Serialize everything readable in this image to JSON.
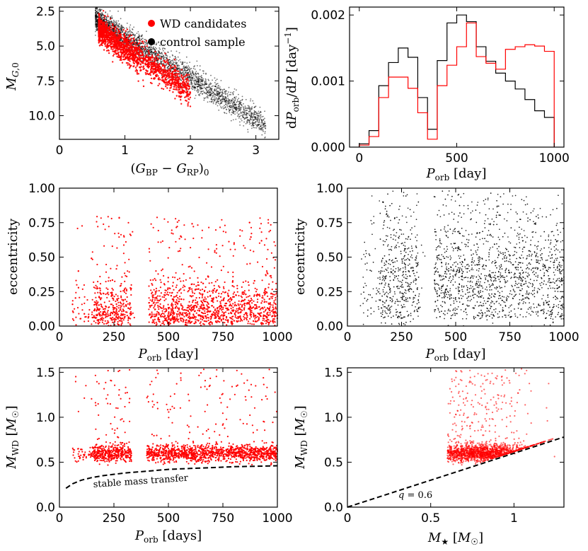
{
  "colors": {
    "wd": "#ff0000",
    "control": "#000000",
    "guide": "#000000"
  },
  "chart_data": [
    {
      "id": "cmd",
      "type": "scatter",
      "xlabel": "(G_BP − G_RP)_0",
      "ylabel": "M_G,0",
      "xlim": [
        0,
        3.35
      ],
      "ylim": [
        11.7,
        2.2
      ],
      "y_inverted": true,
      "xticks": [
        0,
        1,
        2,
        3
      ],
      "yticks": [
        2.5,
        5.0,
        7.5,
        10.0
      ],
      "legend": {
        "placement": "top-right",
        "entries": [
          "WD candidates",
          "control sample"
        ]
      },
      "series": [
        {
          "name": "control sample",
          "color": "#000000",
          "trend": {
            "x_from": 0.5,
            "x_to": 3.2,
            "y_at_x_from": 3.0,
            "slope": 3.0,
            "scatter": 0.7
          }
        },
        {
          "name": "WD candidates",
          "color": "#ff0000",
          "trend": {
            "x_from": 0.6,
            "x_to": 1.9,
            "y_at_x_from": 3.6,
            "slope": 3.3,
            "scatter": 0.9
          }
        }
      ]
    },
    {
      "id": "period_hist",
      "type": "histogram",
      "xlabel": "P_orb [day]",
      "ylabel": "dP_orb/dP [day^-1]",
      "xlim": [
        -50,
        1050
      ],
      "ylim": [
        0,
        0.00212
      ],
      "xticks": [
        0,
        500,
        1000
      ],
      "ytick_labels": [
        "0.000",
        "0.001",
        "0.002"
      ],
      "ytick_values": [
        0,
        0.001,
        0.002
      ],
      "bin_edges": [
        0,
        50,
        100,
        150,
        200,
        250,
        300,
        350,
        400,
        450,
        500,
        550,
        600,
        650,
        700,
        750,
        800,
        850,
        900,
        950,
        1000
      ],
      "series": [
        {
          "name": "control sample",
          "color": "#000000",
          "values": [
            5e-05,
            0.00025,
            0.00093,
            0.00128,
            0.0015,
            0.00136,
            0.00075,
            0.00027,
            0.00131,
            0.00188,
            0.002,
            0.0019,
            0.00152,
            0.0013,
            0.00112,
            0.001,
            0.00088,
            0.00072,
            0.00055,
            0.00045
          ]
        },
        {
          "name": "WD candidates",
          "color": "#ff0000",
          "values": [
            3e-05,
            0.00016,
            0.00075,
            0.00106,
            0.00106,
            0.00089,
            0.00052,
            0.00012,
            0.00093,
            0.00124,
            0.00152,
            0.00188,
            0.00137,
            0.00127,
            0.00118,
            0.00148,
            0.00152,
            0.00155,
            0.00153,
            0.00145
          ]
        }
      ]
    },
    {
      "id": "ecc_wd",
      "type": "scatter",
      "xlabel": "P_orb [day]",
      "ylabel": "eccentricity",
      "xlim": [
        0,
        1000
      ],
      "ylim": [
        0,
        1.0
      ],
      "xticks": [
        0,
        250,
        500,
        750,
        1000
      ],
      "yticks": [
        0.0,
        0.25,
        0.5,
        0.75,
        1.0
      ],
      "series": [
        {
          "name": "WD candidates",
          "color": "#ff0000",
          "count": 1700,
          "density": "clumps at 150-330 and 420-1000 days, gap near 350-400 days, e concentrated 0-0.3"
        }
      ]
    },
    {
      "id": "ecc_control",
      "type": "scatter",
      "xlabel": "P_orb [day]",
      "ylabel": "eccentricity",
      "xlim": [
        0,
        1000
      ],
      "ylim": [
        0,
        1.0
      ],
      "xticks": [
        0,
        250,
        500,
        750,
        1000
      ],
      "yticks": [
        0.0,
        0.25,
        0.5,
        0.75,
        1.0
      ],
      "series": [
        {
          "name": "control sample",
          "color": "#000000",
          "count": 6500,
          "density": "dense at 150-330 and 400-1000 days, gap near 360-400 days"
        }
      ]
    },
    {
      "id": "mwd_period",
      "type": "scatter",
      "xlabel": "P_orb [days]",
      "ylabel": "M_WD [M_☉]",
      "xlim": [
        0,
        1000
      ],
      "ylim": [
        0,
        1.55
      ],
      "xticks": [
        0,
        250,
        500,
        750,
        1000
      ],
      "yticks": [
        0.0,
        0.5,
        1.0,
        1.5
      ],
      "annotations": [
        {
          "text": "stable mass transfer"
        }
      ],
      "curve": {
        "style": "dashed",
        "x": [
          30,
          60,
          100,
          150,
          200,
          300,
          400,
          500,
          600,
          700,
          800,
          900,
          1000
        ],
        "y": [
          0.21,
          0.26,
          0.3,
          0.33,
          0.35,
          0.38,
          0.4,
          0.42,
          0.43,
          0.44,
          0.45,
          0.455,
          0.46
        ]
      },
      "series": [
        {
          "name": "WD candidates",
          "color": "#ff0000",
          "count": 1800,
          "density": "band at M_WD ~0.6, clumps 150-320 and 400-1000 days"
        }
      ]
    },
    {
      "id": "mwd_mstar",
      "type": "scatter",
      "xlabel": "M_★ [M_☉]",
      "ylabel": "M_WD [M_☉]",
      "xlim": [
        0,
        1.3
      ],
      "ylim": [
        0,
        1.55
      ],
      "xticks": [
        0.0,
        0.5,
        1.0
      ],
      "yticks": [
        0.0,
        0.5,
        1.0,
        1.5
      ],
      "annotations": [
        {
          "text": "q = 0.6"
        }
      ],
      "curve": {
        "style": "dashed",
        "x": [
          0,
          1.3
        ],
        "y": [
          0,
          0.78
        ]
      },
      "series": [
        {
          "name": "WD candidates",
          "color": "#ff0000",
          "count": 1800,
          "density": "cluster M_★ 0.6-1.1, M_WD 0.5-0.75 just above q=0.6 line"
        }
      ]
    }
  ]
}
